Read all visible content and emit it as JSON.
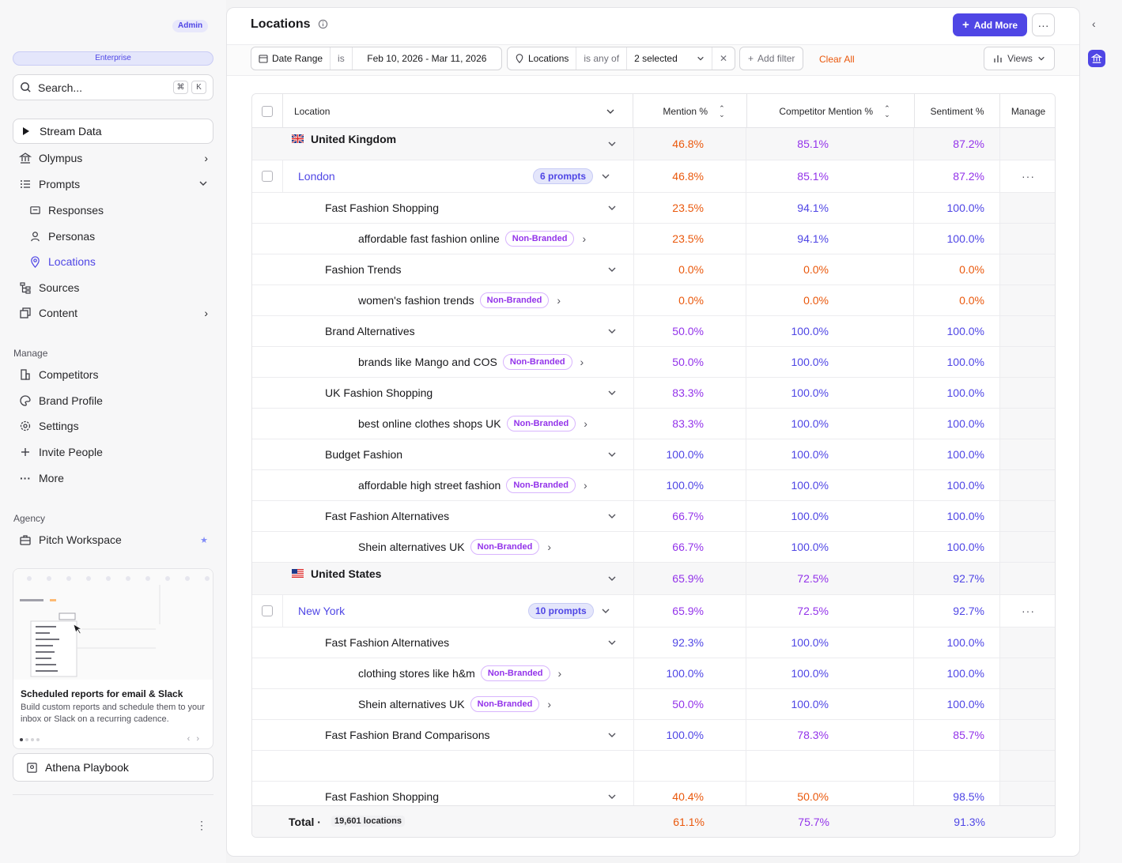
{
  "sidebar": {
    "admin_badge": "Admin",
    "plan": "Enterprise",
    "search_placeholder": "Search...",
    "shortcut_keys": [
      "⌘",
      "K"
    ],
    "stream_label": "Stream Data",
    "nav": [
      {
        "label": "Olympus",
        "icon": "bank-icon"
      },
      {
        "label": "Prompts",
        "icon": "list-icon"
      },
      {
        "label": "Responses",
        "icon": "message-icon"
      },
      {
        "label": "Personas",
        "icon": "user-icon"
      },
      {
        "label": "Locations",
        "icon": "pin-icon"
      },
      {
        "label": "Sources",
        "icon": "tree-icon"
      },
      {
        "label": "Content",
        "icon": "copy-icon"
      }
    ],
    "manage_title": "Manage",
    "manage": [
      {
        "label": "Competitors",
        "icon": "building-icon"
      },
      {
        "label": "Brand Profile",
        "icon": "palette-icon"
      },
      {
        "label": "Settings",
        "icon": "gear-icon"
      },
      {
        "label": "Invite People",
        "icon": "plus-icon"
      },
      {
        "label": "More",
        "icon": "ellipsis-icon"
      }
    ],
    "agency_title": "Agency",
    "agency": [
      {
        "label": "Pitch Workspace",
        "icon": "briefcase-icon"
      }
    ],
    "promo": {
      "title": "Scheduled reports for email & Slack",
      "desc": "Build custom reports and schedule them to your inbox or Slack on a recurring cadence."
    },
    "playbook": "Athena Playbook"
  },
  "header": {
    "title": "Locations",
    "add_more": "Add More"
  },
  "filters": {
    "date_label": "Date Range",
    "date_op": "is",
    "date_value": "Feb 10, 2026 - Mar 11, 2026",
    "loc_label": "Locations",
    "loc_op": "is any of",
    "loc_value": "2 selected",
    "add_filter": "Add filter",
    "clear_all": "Clear All",
    "views": "Views"
  },
  "table": {
    "headers": {
      "location": "Location",
      "mention": "Mention %",
      "competitor": "Competitor Mention %",
      "sentiment": "Sentiment %",
      "manage": "Manage"
    },
    "rows": [
      {
        "kind": "country",
        "name": "United Kingdom",
        "flag": "uk",
        "m": "46.8%",
        "c": "85.1%",
        "s": "87.2%",
        "mc": "o",
        "cc": "p",
        "sc": "p"
      },
      {
        "kind": "location",
        "name": "London",
        "prompts": "6 prompts",
        "m": "46.8%",
        "c": "85.1%",
        "s": "87.2%",
        "mc": "o",
        "cc": "p",
        "sc": "p"
      },
      {
        "kind": "topic",
        "name": "Fast Fashion Shopping",
        "m": "23.5%",
        "c": "94.1%",
        "s": "100.0%",
        "mc": "o",
        "cc": "b",
        "sc": "b"
      },
      {
        "kind": "prompt",
        "name": "affordable fast fashion online",
        "badge": "Non-Branded",
        "m": "23.5%",
        "c": "94.1%",
        "s": "100.0%",
        "mc": "o",
        "cc": "b",
        "sc": "b"
      },
      {
        "kind": "topic",
        "name": "Fashion Trends",
        "m": "0.0%",
        "c": "0.0%",
        "s": "0.0%",
        "mc": "o",
        "cc": "o",
        "sc": "o"
      },
      {
        "kind": "prompt",
        "name": "women's fashion trends",
        "badge": "Non-Branded",
        "m": "0.0%",
        "c": "0.0%",
        "s": "0.0%",
        "mc": "o",
        "cc": "o",
        "sc": "o"
      },
      {
        "kind": "topic",
        "name": "Brand Alternatives",
        "m": "50.0%",
        "c": "100.0%",
        "s": "100.0%",
        "mc": "p",
        "cc": "b",
        "sc": "b"
      },
      {
        "kind": "prompt",
        "name": "brands like Mango and COS",
        "badge": "Non-Branded",
        "m": "50.0%",
        "c": "100.0%",
        "s": "100.0%",
        "mc": "p",
        "cc": "b",
        "sc": "b"
      },
      {
        "kind": "topic",
        "name": "UK Fashion Shopping",
        "m": "83.3%",
        "c": "100.0%",
        "s": "100.0%",
        "mc": "p",
        "cc": "b",
        "sc": "b"
      },
      {
        "kind": "prompt",
        "name": "best online clothes shops UK",
        "badge": "Non-Branded",
        "m": "83.3%",
        "c": "100.0%",
        "s": "100.0%",
        "mc": "p",
        "cc": "b",
        "sc": "b"
      },
      {
        "kind": "topic",
        "name": "Budget Fashion",
        "m": "100.0%",
        "c": "100.0%",
        "s": "100.0%",
        "mc": "b",
        "cc": "b",
        "sc": "b"
      },
      {
        "kind": "prompt",
        "name": "affordable high street fashion",
        "badge": "Non-Branded",
        "m": "100.0%",
        "c": "100.0%",
        "s": "100.0%",
        "mc": "b",
        "cc": "b",
        "sc": "b"
      },
      {
        "kind": "topic",
        "name": "Fast Fashion Alternatives",
        "m": "66.7%",
        "c": "100.0%",
        "s": "100.0%",
        "mc": "p",
        "cc": "b",
        "sc": "b"
      },
      {
        "kind": "prompt",
        "name": "Shein alternatives UK",
        "badge": "Non-Branded",
        "m": "66.7%",
        "c": "100.0%",
        "s": "100.0%",
        "mc": "p",
        "cc": "b",
        "sc": "b"
      },
      {
        "kind": "country",
        "name": "United States",
        "flag": "us",
        "m": "65.9%",
        "c": "72.5%",
        "s": "92.7%",
        "mc": "p",
        "cc": "p",
        "sc": "b"
      },
      {
        "kind": "location",
        "name": "New York",
        "prompts": "10 prompts",
        "m": "65.9%",
        "c": "72.5%",
        "s": "92.7%",
        "mc": "p",
        "cc": "p",
        "sc": "b"
      },
      {
        "kind": "topic",
        "name": "Fast Fashion Alternatives",
        "m": "92.3%",
        "c": "100.0%",
        "s": "100.0%",
        "mc": "b",
        "cc": "b",
        "sc": "b"
      },
      {
        "kind": "prompt",
        "name": "clothing stores like h&m",
        "badge": "Non-Branded",
        "m": "100.0%",
        "c": "100.0%",
        "s": "100.0%",
        "mc": "b",
        "cc": "b",
        "sc": "b"
      },
      {
        "kind": "prompt",
        "name": "Shein alternatives UK",
        "badge": "Non-Branded",
        "m": "50.0%",
        "c": "100.0%",
        "s": "100.0%",
        "mc": "p",
        "cc": "b",
        "sc": "b"
      },
      {
        "kind": "topic",
        "name": "Fast Fashion Brand Comparisons",
        "m": "100.0%",
        "c": "78.3%",
        "s": "85.7%",
        "mc": "b",
        "cc": "p",
        "sc": "p"
      },
      {
        "kind": "blank"
      },
      {
        "kind": "topic",
        "name": "Fast Fashion Shopping",
        "m": "40.4%",
        "c": "50.0%",
        "s": "98.5%",
        "mc": "o",
        "cc": "o",
        "sc": "b"
      }
    ],
    "total": {
      "label": "Total ·",
      "count": "19,601 locations",
      "m": "61.1%",
      "c": "75.7%",
      "s": "91.3%"
    }
  },
  "colors": {
    "accent": "#4f46e5",
    "orange": "#ea580c",
    "purple": "#9333ea"
  }
}
